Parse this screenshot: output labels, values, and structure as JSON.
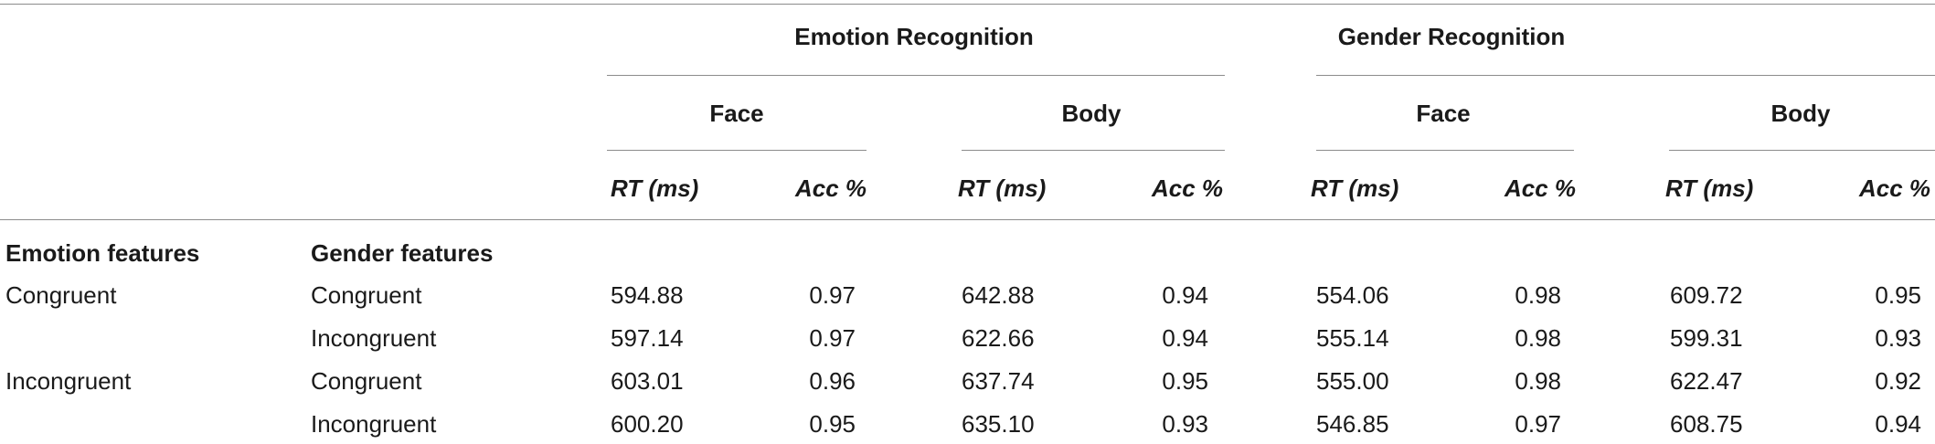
{
  "table": {
    "group_headers": [
      "Emotion Recognition",
      "Gender Recognition"
    ],
    "sub_headers": [
      "Face",
      "Body",
      "Face",
      "Body"
    ],
    "column_headers": [
      "RT (ms)",
      "Acc %",
      "RT (ms)",
      "Acc %",
      "RT (ms)",
      "Acc %",
      "RT (ms)",
      "Acc %"
    ],
    "row_label_headers": [
      "Emotion features",
      "Gender features"
    ],
    "rows": [
      {
        "emotion": "Congruent",
        "gender": "Congruent",
        "values": [
          "594.88",
          "0.97",
          "642.88",
          "0.94",
          "554.06",
          "0.98",
          "609.72",
          "0.95"
        ]
      },
      {
        "emotion": "",
        "gender": "Incongruent",
        "values": [
          "597.14",
          "0.97",
          "622.66",
          "0.94",
          "555.14",
          "0.98",
          "599.31",
          "0.93"
        ]
      },
      {
        "emotion": "Incongruent",
        "gender": "Congruent",
        "values": [
          "603.01",
          "0.96",
          "637.74",
          "0.95",
          "555.00",
          "0.98",
          "622.47",
          "0.92"
        ]
      },
      {
        "emotion": "",
        "gender": "Incongruent",
        "values": [
          "600.20",
          "0.95",
          "635.10",
          "0.93",
          "546.85",
          "0.97",
          "608.75",
          "0.94"
        ]
      }
    ]
  }
}
